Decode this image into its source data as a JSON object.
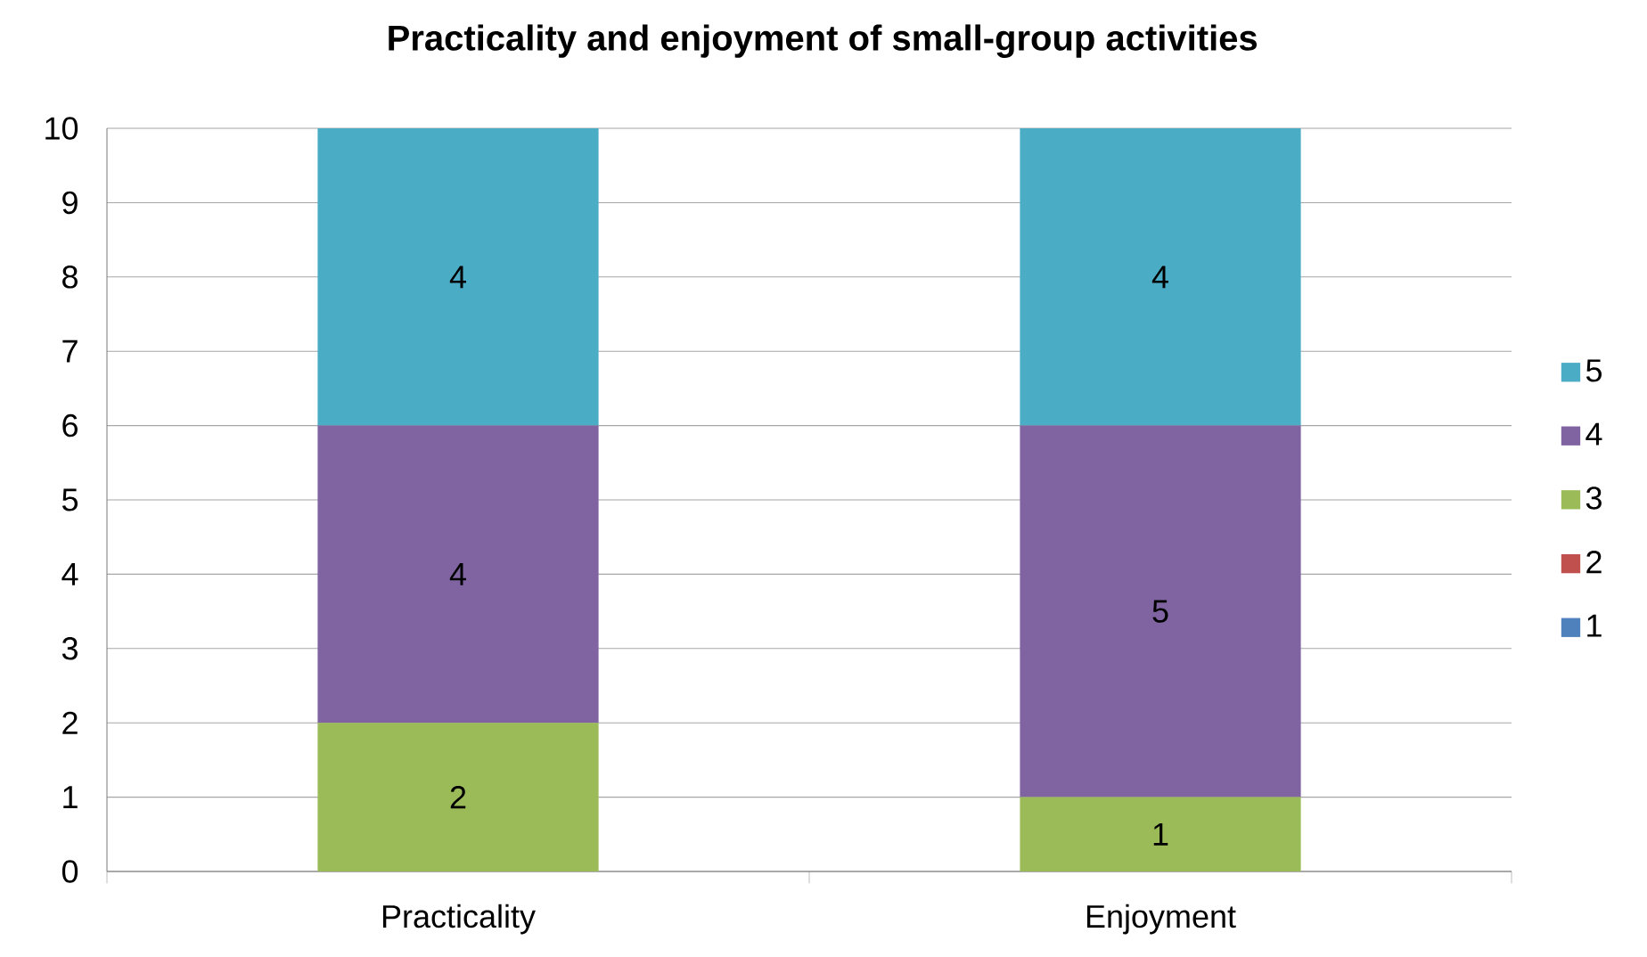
{
  "chart_data": {
    "type": "bar",
    "stacked": true,
    "title": "Practicality and enjoyment of small-group activities",
    "categories": [
      "Practicality",
      "Enjoyment"
    ],
    "series": [
      {
        "name": "1",
        "color": "#4f81bd",
        "values": [
          0,
          0
        ],
        "value_labels": [
          null,
          null
        ]
      },
      {
        "name": "2",
        "color": "#c0504d",
        "values": [
          0,
          0
        ],
        "value_labels": [
          null,
          null
        ]
      },
      {
        "name": "3",
        "color": "#9bbb59",
        "values": [
          2,
          1
        ],
        "value_labels": [
          "2",
          "1"
        ]
      },
      {
        "name": "4",
        "color": "#8064a2",
        "values": [
          4,
          5
        ],
        "value_labels": [
          "4",
          "5"
        ]
      },
      {
        "name": "5",
        "color": "#4bacc6",
        "values": [
          4,
          4
        ],
        "value_labels": [
          "4",
          "4"
        ]
      }
    ],
    "ylim": [
      0,
      10
    ],
    "yticks": [
      0,
      1,
      2,
      3,
      4,
      5,
      6,
      7,
      8,
      9,
      10
    ],
    "grid": "y",
    "legend": "right"
  }
}
